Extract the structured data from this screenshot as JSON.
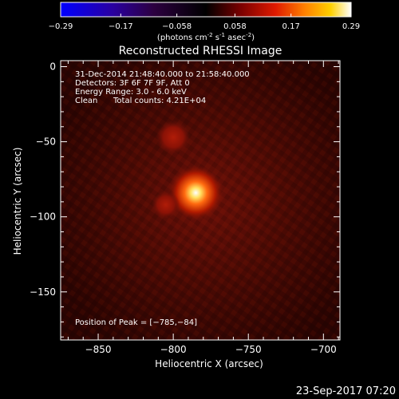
{
  "colorbar": {
    "ticks": [
      "-0.29",
      "-0.17",
      "-0.058",
      "0.058",
      "0.17",
      "0.29"
    ],
    "range": [
      -0.29,
      0.29
    ],
    "unit_label_parts": [
      "(photons cm",
      "-2",
      " s",
      "-1",
      " asec",
      "-2",
      ")"
    ],
    "colormap": [
      "#0000ff",
      "#2a00a0",
      "#3a0066",
      "#000000",
      "#7a0000",
      "#e01a00",
      "#ff8000",
      "#ffd000",
      "#ffffff"
    ]
  },
  "chart_data": {
    "type": "heatmap",
    "title": "Reconstructed RHESSI Image",
    "xlabel": "Heliocentric X (arcsec)",
    "ylabel": "Heliocentric Y (arcsec)",
    "xlim": [
      -875,
      -689
    ],
    "ylim": [
      -182,
      4
    ],
    "xticks": [
      -850,
      -800,
      -750,
      -700
    ],
    "yticks": [
      0,
      -50,
      -100,
      -150
    ],
    "xtick_labels": [
      "−850",
      "−800",
      "−750",
      "−700"
    ],
    "ytick_labels": [
      "0",
      "−50",
      "−100",
      "−150"
    ],
    "sources": [
      {
        "x": -785,
        "y": -84,
        "relative_intensity": 1.0
      },
      {
        "x": -800,
        "y": -47,
        "relative_intensity": 0.45
      },
      {
        "x": -805,
        "y": -92,
        "relative_intensity": 0.3
      }
    ],
    "peak": [
      -785,
      -84
    ],
    "annotations": {
      "time_range": "31-Dec-2014 21:48:40.000 to 21:58:40.000",
      "detectors": "Detectors: 3F 6F 7F 9F, Att 0",
      "energy": "Energy Range: 3.0 - 6.0 keV",
      "clean": "Clean",
      "total_counts": "Total counts: 4.21E+04",
      "peak_text": "Position of Peak = [−785,−84]"
    }
  },
  "footer": {
    "timestamp": "23-Sep-2017 07:20"
  }
}
